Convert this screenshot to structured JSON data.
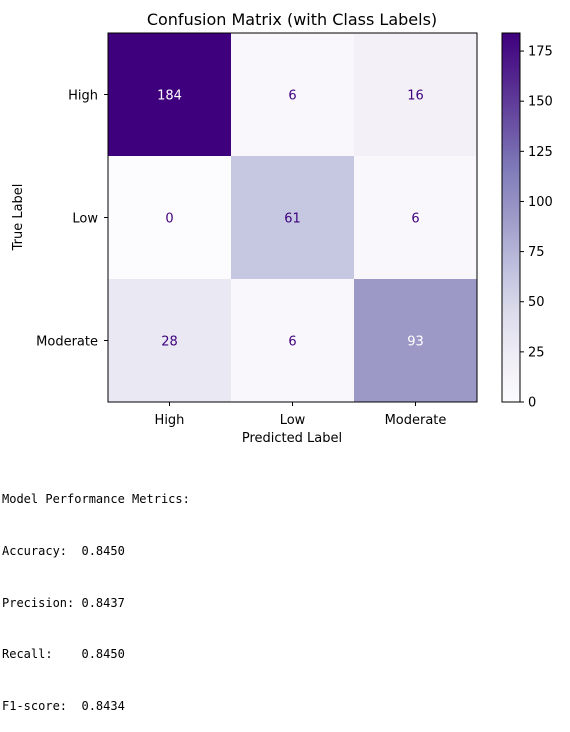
{
  "chart_data": {
    "type": "heatmap",
    "title": "Confusion Matrix (with Class Labels)",
    "xlabel": "Predicted Label",
    "ylabel": "True Label",
    "x_categories": [
      "High",
      "Low",
      "Moderate"
    ],
    "y_categories": [
      "High",
      "Low",
      "Moderate"
    ],
    "matrix": [
      [
        184,
        6,
        16
      ],
      [
        0,
        61,
        6
      ],
      [
        28,
        6,
        93
      ]
    ],
    "colorbar": {
      "min": 0,
      "max": 184,
      "ticks": [
        "0",
        "25",
        "50",
        "75",
        "100",
        "125",
        "150",
        "175"
      ],
      "colormap": "Purples",
      "low_color": "#fcfbfd",
      "high_color": "#3f007d"
    },
    "text_dark_color": "#3f007d",
    "text_light_color": "#ffffff"
  },
  "metrics": {
    "heading": "Model Performance Metrics:",
    "lines": [
      "Accuracy:  0.8450",
      "Precision: 0.8437",
      "Recall:    0.8450",
      "F1-score:  0.8434"
    ]
  }
}
